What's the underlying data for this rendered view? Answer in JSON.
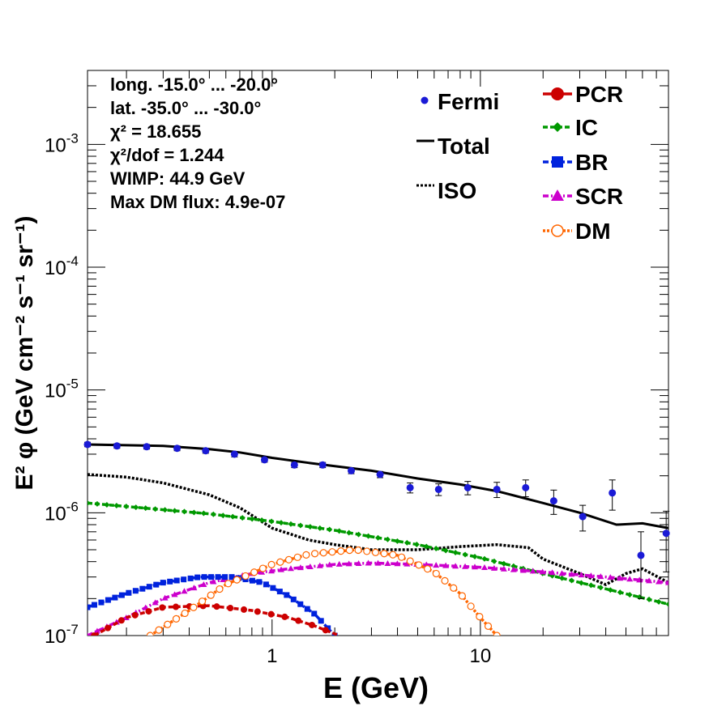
{
  "chart_data": {
    "type": "line",
    "xlabel": "E (GeV)",
    "ylabel": "E² φ (GeV cm⁻² s⁻¹ sr⁻¹)",
    "x_scale": "log",
    "y_scale": "log",
    "xlim": [
      0.13,
      80
    ],
    "ylim": [
      1e-07,
      0.004
    ],
    "x_tick_labels": [
      {
        "value": 1,
        "label": "1"
      },
      {
        "value": 10,
        "label": "10"
      }
    ],
    "y_tick_labels": [
      {
        "value": 1e-07,
        "base": "10",
        "exp": "-7"
      },
      {
        "value": 1e-06,
        "base": "10",
        "exp": "-6"
      },
      {
        "value": 1e-05,
        "base": "10",
        "exp": "-5"
      },
      {
        "value": 0.0001,
        "base": "10",
        "exp": "-4"
      },
      {
        "value": 0.001,
        "base": "10",
        "exp": "-3"
      }
    ],
    "info_lines": [
      "long. -15.0° ... -20.0°",
      "lat. -35.0° ... -30.0°",
      "χ² = 18.655",
      "χ²/dof = 1.244",
      "WIMP: 44.9 GeV",
      "Max DM flux: 4.9e-07"
    ],
    "legend_left": [
      "Fermi",
      "Total",
      "ISO"
    ],
    "legend_right": [
      "PCR",
      "IC",
      "BR",
      "SCR",
      "DM"
    ],
    "colors": {
      "Fermi": "#1a1ad6",
      "Total": "#000000",
      "ISO": "#000000",
      "PCR": "#cc0000",
      "IC": "#009900",
      "BR": "#0022dd",
      "SCR": "#cc00cc",
      "DM": "#ff6600"
    },
    "fermi": [
      {
        "x": 0.13,
        "y": 3.6e-06,
        "err_lo": 1.5e-07,
        "err_hi": 1.5e-07
      },
      {
        "x": 0.18,
        "y": 3.5e-06,
        "err_lo": 1.5e-07,
        "err_hi": 1.5e-07
      },
      {
        "x": 0.25,
        "y": 3.45e-06,
        "err_lo": 1.5e-07,
        "err_hi": 1.5e-07
      },
      {
        "x": 0.35,
        "y": 3.35e-06,
        "err_lo": 1.5e-07,
        "err_hi": 1.5e-07
      },
      {
        "x": 0.48,
        "y": 3.2e-06,
        "err_lo": 1.5e-07,
        "err_hi": 1.5e-07
      },
      {
        "x": 0.66,
        "y": 3e-06,
        "err_lo": 1.5e-07,
        "err_hi": 1.5e-07
      },
      {
        "x": 0.92,
        "y": 2.7e-06,
        "err_lo": 1.2e-07,
        "err_hi": 1.2e-07
      },
      {
        "x": 1.28,
        "y": 2.45e-06,
        "err_lo": 1.2e-07,
        "err_hi": 1.2e-07
      },
      {
        "x": 1.75,
        "y": 2.45e-06,
        "err_lo": 1.2e-07,
        "err_hi": 1.2e-07
      },
      {
        "x": 2.4,
        "y": 2.2e-06,
        "err_lo": 1.2e-07,
        "err_hi": 1.2e-07
      },
      {
        "x": 3.3,
        "y": 2.05e-06,
        "err_lo": 1.2e-07,
        "err_hi": 1.2e-07
      },
      {
        "x": 4.6,
        "y": 1.6e-06,
        "err_lo": 1.5e-07,
        "err_hi": 1.5e-07
      },
      {
        "x": 6.3,
        "y": 1.55e-06,
        "err_lo": 1.7e-07,
        "err_hi": 1.7e-07
      },
      {
        "x": 8.7,
        "y": 1.6e-06,
        "err_lo": 2e-07,
        "err_hi": 2e-07
      },
      {
        "x": 12,
        "y": 1.55e-06,
        "err_lo": 2.2e-07,
        "err_hi": 2.2e-07
      },
      {
        "x": 16.5,
        "y": 1.6e-06,
        "err_lo": 2.5e-07,
        "err_hi": 2.5e-07
      },
      {
        "x": 22.5,
        "y": 1.25e-06,
        "err_lo": 2.8e-07,
        "err_hi": 2.8e-07
      },
      {
        "x": 31,
        "y": 9.3e-07,
        "err_lo": 2.2e-07,
        "err_hi": 2.2e-07
      },
      {
        "x": 43,
        "y": 1.45e-06,
        "err_lo": 4e-07,
        "err_hi": 4e-07
      },
      {
        "x": 59,
        "y": 4.5e-07,
        "err_lo": 2.5e-07,
        "err_hi": 2.5e-07
      },
      {
        "x": 78,
        "y": 6.8e-07,
        "err_lo": 3.5e-07,
        "err_hi": 3.5e-07
      }
    ],
    "series": [
      {
        "name": "Total",
        "style": "solid",
        "marker": "none",
        "points": [
          [
            0.13,
            3.6e-06
          ],
          [
            0.2,
            3.55e-06
          ],
          [
            0.3,
            3.5e-06
          ],
          [
            0.5,
            3.3e-06
          ],
          [
            0.7,
            3.1e-06
          ],
          [
            1,
            2.8e-06
          ],
          [
            1.5,
            2.55e-06
          ],
          [
            2,
            2.4e-06
          ],
          [
            3,
            2.2e-06
          ],
          [
            5,
            1.9e-06
          ],
          [
            8,
            1.7e-06
          ],
          [
            12,
            1.5e-06
          ],
          [
            20,
            1.2e-06
          ],
          [
            30,
            1e-06
          ],
          [
            45,
            8e-07
          ],
          [
            60,
            8.2e-07
          ],
          [
            80,
            7.5e-07
          ]
        ]
      },
      {
        "name": "ISO",
        "style": "dotted",
        "marker": "none",
        "points": [
          [
            0.13,
            2.05e-06
          ],
          [
            0.2,
            1.95e-06
          ],
          [
            0.3,
            1.75e-06
          ],
          [
            0.5,
            1.4e-06
          ],
          [
            0.7,
            1.1e-06
          ],
          [
            1,
            7.5e-07
          ],
          [
            1.5,
            6e-07
          ],
          [
            2,
            5.5e-07
          ],
          [
            3,
            5e-07
          ],
          [
            5,
            5e-07
          ],
          [
            8,
            5.3e-07
          ],
          [
            12,
            5.5e-07
          ],
          [
            17,
            5.2e-07
          ],
          [
            20,
            4.2e-07
          ],
          [
            30,
            3.2e-07
          ],
          [
            40,
            2.6e-07
          ],
          [
            50,
            3.2e-07
          ],
          [
            60,
            3.5e-07
          ],
          [
            80,
            2.7e-07
          ]
        ]
      },
      {
        "name": "IC",
        "style": "dashed",
        "marker": "diamond",
        "marker_count": 60,
        "points": [
          [
            0.13,
            1.2e-06
          ],
          [
            0.5,
            9.8e-07
          ],
          [
            1,
            8.5e-07
          ],
          [
            2,
            7.2e-07
          ],
          [
            5,
            5.5e-07
          ],
          [
            10,
            4.3e-07
          ],
          [
            20,
            3.2e-07
          ],
          [
            40,
            2.4e-07
          ],
          [
            80,
            1.8e-07
          ]
        ]
      },
      {
        "name": "SCR",
        "style": "dashdot",
        "marker": "triangle",
        "marker_count": 60,
        "points": [
          [
            0.13,
            1e-07
          ],
          [
            0.2,
            1.4e-07
          ],
          [
            0.3,
            2e-07
          ],
          [
            0.5,
            2.7e-07
          ],
          [
            0.8,
            3.2e-07
          ],
          [
            1.2,
            3.5e-07
          ],
          [
            2,
            3.8e-07
          ],
          [
            3,
            3.9e-07
          ],
          [
            5,
            3.8e-07
          ],
          [
            10,
            3.6e-07
          ],
          [
            20,
            3.3e-07
          ],
          [
            40,
            3e-07
          ],
          [
            80,
            2.7e-07
          ]
        ]
      },
      {
        "name": "BR",
        "style": "dashdot",
        "marker": "square",
        "marker_count": 36,
        "points": [
          [
            0.13,
            1.7e-07
          ],
          [
            0.2,
            2.2e-07
          ],
          [
            0.3,
            2.7e-07
          ],
          [
            0.45,
            3e-07
          ],
          [
            0.65,
            3e-07
          ],
          [
            0.9,
            2.7e-07
          ],
          [
            1.2,
            2.1e-07
          ],
          [
            1.6,
            1.5e-07
          ],
          [
            2,
            1e-07
          ]
        ]
      },
      {
        "name": "PCR",
        "style": "dashed",
        "marker": "circle",
        "marker_count": 18,
        "points": [
          [
            0.14,
            1e-07
          ],
          [
            0.2,
            1.4e-07
          ],
          [
            0.3,
            1.7e-07
          ],
          [
            0.5,
            1.75e-07
          ],
          [
            0.8,
            1.6e-07
          ],
          [
            1.2,
            1.4e-07
          ],
          [
            1.6,
            1.2e-07
          ],
          [
            2.1,
            1e-07
          ]
        ]
      },
      {
        "name": "DM",
        "style": "dotted",
        "marker": "opencircle",
        "marker_count": 40,
        "points": [
          [
            0.26,
            1e-07
          ],
          [
            0.4,
            1.6e-07
          ],
          [
            0.6,
            2.6e-07
          ],
          [
            1,
            3.8e-07
          ],
          [
            1.5,
            4.6e-07
          ],
          [
            2.5,
            5e-07
          ],
          [
            4,
            4.5e-07
          ],
          [
            6,
            3.3e-07
          ],
          [
            8,
            2.2e-07
          ],
          [
            10,
            1.4e-07
          ],
          [
            12,
            1e-07
          ]
        ]
      }
    ]
  }
}
